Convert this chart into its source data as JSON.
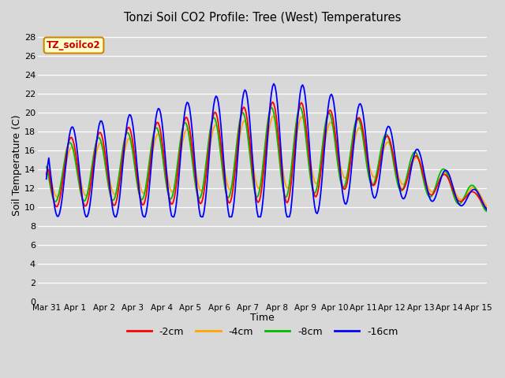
{
  "title": "Tonzi Soil CO2 Profile: Tree (West) Temperatures",
  "xlabel": "Time",
  "ylabel": "Soil Temperature (C)",
  "legend_label": "TZ_soilco2",
  "series_labels": [
    "-2cm",
    "-4cm",
    "-8cm",
    "-16cm"
  ],
  "series_colors": [
    "#ff0000",
    "#ffa500",
    "#00bb00",
    "#0000ff"
  ],
  "ylim": [
    0,
    29
  ],
  "yticks": [
    0,
    2,
    4,
    6,
    8,
    10,
    12,
    14,
    16,
    18,
    20,
    22,
    24,
    26,
    28
  ],
  "bg_color": "#d8d8d8",
  "plot_bg_color": "#d8d8d8",
  "linewidth": 1.3,
  "xtick_labels": [
    "Mar 31",
    "Apr 1",
    "Apr 2",
    "Apr 3",
    "Apr 4",
    "Apr 5",
    "Apr 6",
    "Apr 7",
    "Apr 8",
    "Apr 9",
    "Apr 10",
    "Apr 11",
    "Apr 12",
    "Apr 13",
    "Apr 14",
    "Apr 15"
  ],
  "xtick_positions": [
    0,
    1,
    2,
    3,
    4,
    5,
    6,
    7,
    8,
    9,
    10,
    11,
    12,
    13,
    14,
    15
  ]
}
